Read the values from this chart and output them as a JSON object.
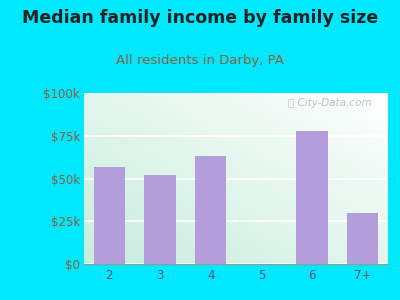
{
  "title": "Median family income by family size",
  "subtitle": "All residents in Darby, PA",
  "categories": [
    "2",
    "3",
    "4",
    "5",
    "6",
    "7+"
  ],
  "values": [
    57000,
    52000,
    63000,
    0,
    78000,
    30000
  ],
  "bar_color": "#b39ddb",
  "background_outer": "#00e8ff",
  "grad_top_left": "#c8eed8",
  "grad_bottom_right": "#f8fff8",
  "title_color": "#222222",
  "subtitle_color": "#8b5e3c",
  "tick_color": "#8b5e3c",
  "xtick_color": "#555577",
  "ytick_labels": [
    "$0",
    "$25k",
    "$50k",
    "$75k",
    "$100k"
  ],
  "ytick_values": [
    0,
    25000,
    50000,
    75000,
    100000
  ],
  "ylim": [
    0,
    100000
  ],
  "watermark": "ⓘ City-Data.com",
  "title_fontsize": 12.5,
  "subtitle_fontsize": 9.5
}
